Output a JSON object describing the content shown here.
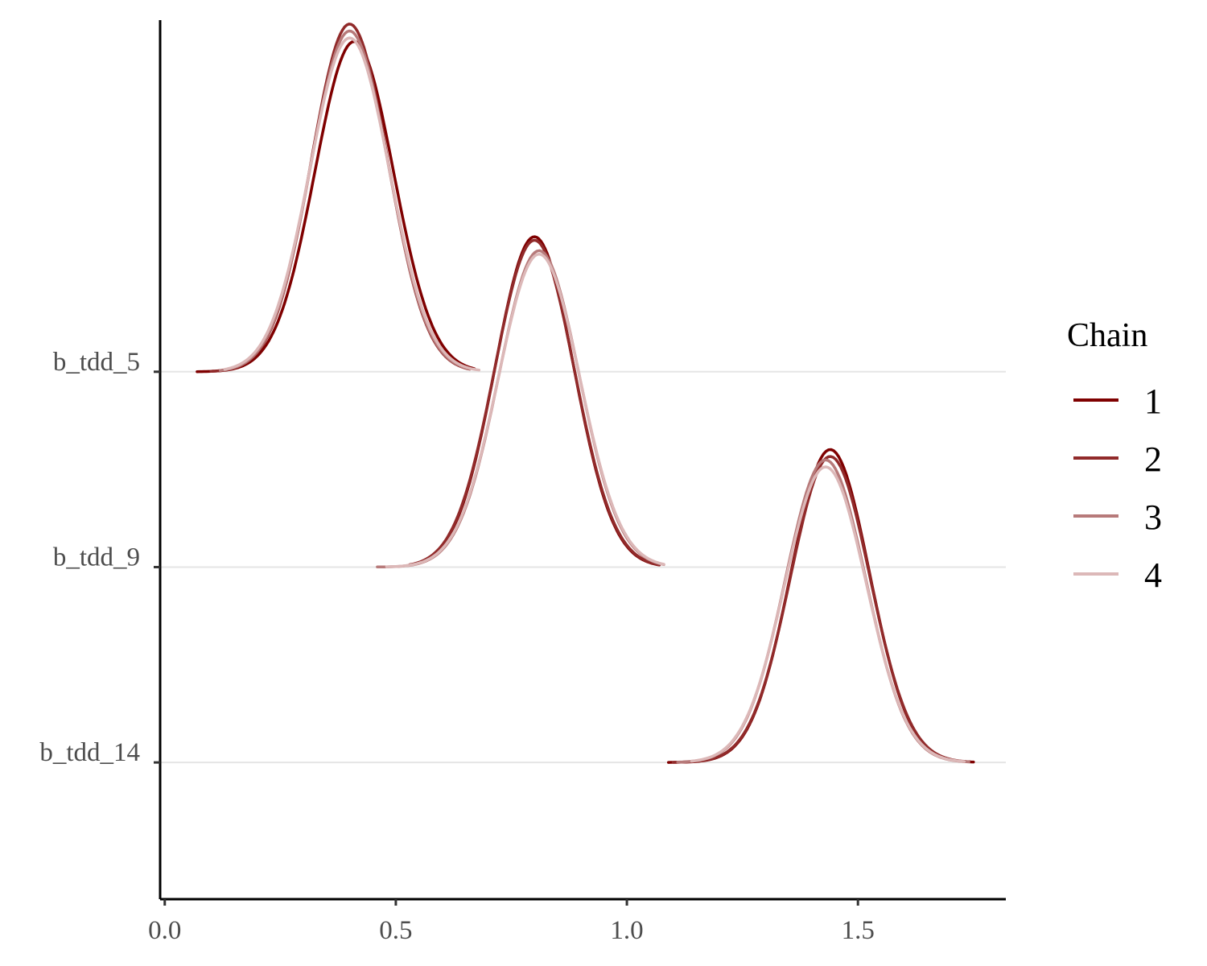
{
  "chart_data": {
    "type": "line",
    "subtype": "ridgeline-density",
    "title": "",
    "xlabel": "",
    "ylabel": "",
    "xlim": [
      -0.01,
      1.82
    ],
    "x_ticks": [
      {
        "value": 0.0,
        "label": "0.0"
      },
      {
        "value": 0.5,
        "label": "0.5"
      },
      {
        "value": 1.0,
        "label": "1.0"
      },
      {
        "value": 1.5,
        "label": "1.5"
      }
    ],
    "categories": [
      "b_tdd_5",
      "b_tdd_9",
      "b_tdd_14"
    ],
    "ridge_positions": [
      3,
      2,
      1
    ],
    "ylim": [
      0.3,
      4.8
    ],
    "max_ridge_height": 1.78,
    "grid": "horizontal at category baselines",
    "legend": {
      "title": "Chain",
      "position": "right",
      "entries": [
        {
          "label": "1",
          "color": "#7f0000"
        },
        {
          "label": "2",
          "color": "#912a2a"
        },
        {
          "label": "3",
          "color": "#b77a7a"
        },
        {
          "label": "4",
          "color": "#dcb8b8"
        }
      ]
    },
    "series": [
      {
        "parameter": "b_tdd_5",
        "chain": "1",
        "mean": 0.41,
        "sd": 0.085,
        "peak": 0.95,
        "min": 0.07,
        "max": 0.67
      },
      {
        "parameter": "b_tdd_5",
        "chain": "2",
        "mean": 0.4,
        "sd": 0.083,
        "peak": 1.0,
        "min": 0.1,
        "max": 0.66
      },
      {
        "parameter": "b_tdd_5",
        "chain": "3",
        "mean": 0.4,
        "sd": 0.084,
        "peak": 0.98,
        "min": 0.12,
        "max": 0.66
      },
      {
        "parameter": "b_tdd_5",
        "chain": "4",
        "mean": 0.4,
        "sd": 0.086,
        "peak": 0.96,
        "min": 0.13,
        "max": 0.68
      },
      {
        "parameter": "b_tdd_9",
        "chain": "1",
        "mean": 0.8,
        "sd": 0.085,
        "peak": 0.95,
        "min": 0.54,
        "max": 1.07
      },
      {
        "parameter": "b_tdd_9",
        "chain": "2",
        "mean": 0.8,
        "sd": 0.086,
        "peak": 0.94,
        "min": 0.53,
        "max": 1.07
      },
      {
        "parameter": "b_tdd_9",
        "chain": "3",
        "mean": 0.81,
        "sd": 0.087,
        "peak": 0.91,
        "min": 0.46,
        "max": 1.08
      },
      {
        "parameter": "b_tdd_9",
        "chain": "4",
        "mean": 0.81,
        "sd": 0.088,
        "peak": 0.9,
        "min": 0.48,
        "max": 1.08
      },
      {
        "parameter": "b_tdd_14",
        "chain": "1",
        "mean": 1.44,
        "sd": 0.085,
        "peak": 0.9,
        "min": 1.09,
        "max": 1.75
      },
      {
        "parameter": "b_tdd_14",
        "chain": "2",
        "mean": 1.44,
        "sd": 0.086,
        "peak": 0.88,
        "min": 1.1,
        "max": 1.74
      },
      {
        "parameter": "b_tdd_14",
        "chain": "3",
        "mean": 1.43,
        "sd": 0.087,
        "peak": 0.87,
        "min": 1.11,
        "max": 1.74
      },
      {
        "parameter": "b_tdd_14",
        "chain": "4",
        "mean": 1.43,
        "sd": 0.088,
        "peak": 0.85,
        "min": 1.14,
        "max": 1.73
      }
    ]
  }
}
